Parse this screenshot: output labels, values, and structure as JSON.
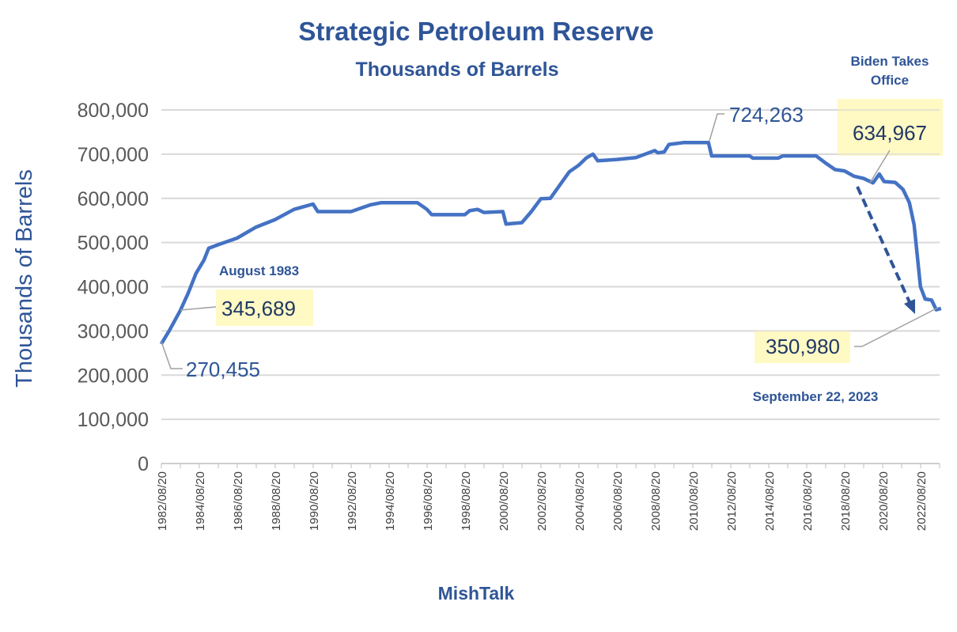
{
  "chart_data": {
    "type": "line",
    "title": "Strategic Petroleum Reserve",
    "subtitle": "Thousands of Barrels",
    "ylabel": "Thousands of Barrels",
    "xlabel": "MishTalk",
    "ylim": [
      0,
      800000
    ],
    "yticks": [
      0,
      100000,
      200000,
      300000,
      400000,
      500000,
      600000,
      700000,
      800000
    ],
    "ytick_labels": [
      "0",
      "100,000",
      "200,000",
      "300,000",
      "400,000",
      "500,000",
      "600,000",
      "700,000",
      "800,000"
    ],
    "xtick_labels": [
      "1982/08/20",
      "1984/08/20",
      "1986/08/20",
      "1988/08/20",
      "1990/08/20",
      "1992/08/20",
      "1994/08/20",
      "1996/08/20",
      "1998/08/20",
      "2000/08/20",
      "2002/08/20",
      "2004/08/20",
      "2006/08/20",
      "2008/08/20",
      "2010/08/20",
      "2012/08/20",
      "2014/08/20",
      "2016/08/20",
      "2018/08/20",
      "2020/08/20",
      "2022/08/20"
    ],
    "grid": true,
    "line_color": "#4472C4",
    "highlight_color": "#FFF9C4",
    "annotation_color": "#2F5597",
    "series": [
      {
        "points": [
          [
            "1982-08",
            270455
          ],
          [
            "1983-01",
            300000
          ],
          [
            "1983-08",
            345689
          ],
          [
            "1984-01",
            385000
          ],
          [
            "1984-06",
            430000
          ],
          [
            "1984-11",
            460000
          ],
          [
            "1985-02",
            487000
          ],
          [
            "1985-08",
            495000
          ],
          [
            "1986-08",
            510000
          ],
          [
            "1987-08",
            535000
          ],
          [
            "1988-08",
            552000
          ],
          [
            "1989-08",
            575000
          ],
          [
            "1990-08",
            587000
          ],
          [
            "1990-11",
            570000
          ],
          [
            "1992-08",
            570000
          ],
          [
            "1993-08",
            585000
          ],
          [
            "1994-03",
            590000
          ],
          [
            "1996-02",
            590000
          ],
          [
            "1996-08",
            575000
          ],
          [
            "1996-11",
            563000
          ],
          [
            "1998-08",
            563000
          ],
          [
            "1998-11",
            572000
          ],
          [
            "1999-04",
            575000
          ],
          [
            "1999-08",
            568000
          ],
          [
            "2000-08",
            570000
          ],
          [
            "2000-10",
            542000
          ],
          [
            "2001-08",
            545000
          ],
          [
            "2002-02",
            570000
          ],
          [
            "2002-08",
            599000
          ],
          [
            "2003-02",
            600000
          ],
          [
            "2003-08",
            630000
          ],
          [
            "2004-02",
            660000
          ],
          [
            "2004-08",
            675000
          ],
          [
            "2005-01",
            692000
          ],
          [
            "2005-05",
            700000
          ],
          [
            "2005-08",
            685000
          ],
          [
            "2006-08",
            688000
          ],
          [
            "2007-08",
            692000
          ],
          [
            "2008-08",
            708000
          ],
          [
            "2008-10",
            703000
          ],
          [
            "2009-02",
            705000
          ],
          [
            "2009-05",
            722000
          ],
          [
            "2010-02",
            726000
          ],
          [
            "2011-06",
            726000
          ],
          [
            "2011-08",
            696000
          ],
          [
            "2013-08",
            696000
          ],
          [
            "2013-10",
            691000
          ],
          [
            "2015-02",
            691000
          ],
          [
            "2015-05",
            696000
          ],
          [
            "2017-02",
            696000
          ],
          [
            "2017-08",
            680000
          ],
          [
            "2018-02",
            665000
          ],
          [
            "2018-08",
            662000
          ],
          [
            "2019-02",
            650000
          ],
          [
            "2019-08",
            645000
          ],
          [
            "2020-02",
            635000
          ],
          [
            "2020-06",
            655000
          ],
          [
            "2020-09",
            638000
          ],
          [
            "2021-04",
            636000
          ],
          [
            "2021-09",
            620000
          ],
          [
            "2022-01",
            590000
          ],
          [
            "2022-04",
            540000
          ],
          [
            "2022-06",
            470000
          ],
          [
            "2022-08",
            400000
          ],
          [
            "2022-11",
            372000
          ],
          [
            "2023-03",
            370000
          ],
          [
            "2023-06",
            348000
          ],
          [
            "2023-09",
            350980
          ]
        ]
      }
    ],
    "annotations": {
      "start_value": "270,455",
      "aug1983_label": "August 1983",
      "aug1983_value": "345,689",
      "peak_value": "724,263",
      "biden_label_line1": "Biden Takes",
      "biden_label_line2": "Office",
      "biden_value": "634,967",
      "end_value": "350,980",
      "end_label": "September 22, 2023"
    }
  }
}
